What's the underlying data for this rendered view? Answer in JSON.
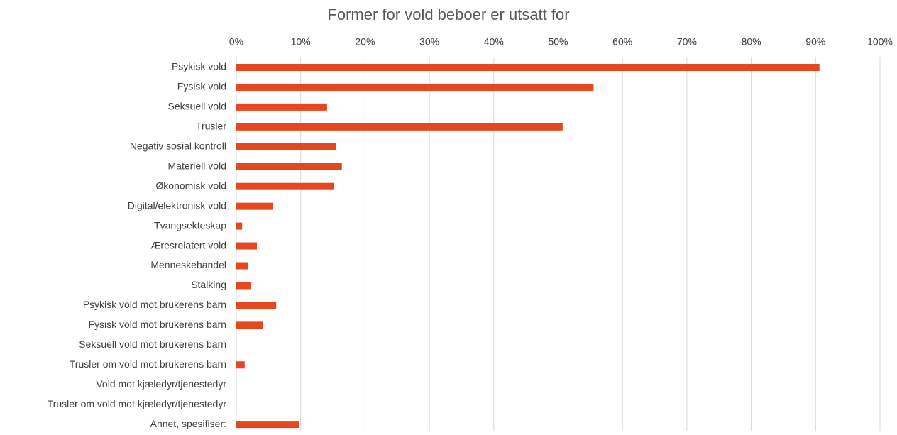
{
  "chart_data": {
    "type": "barh",
    "title": "Former for vold beboer er utsatt for",
    "categories": [
      "Psykisk vold",
      "Fysisk vold",
      "Seksuell vold",
      "Trusler",
      "Negativ sosial kontroll",
      "Materiell vold",
      "Økonomisk vold",
      "Digital/elektronisk vold",
      "Tvangsekteskap",
      "Æresrelatert vold",
      "Menneskehandel",
      "Stalking",
      "Psykisk vold mot brukerens barn",
      "Fysisk vold mot brukerens barn",
      "Seksuell vold mot brukerens barn",
      "Trusler om vold mot brukerens barn",
      "Vold mot kjæledyr/tjenestedyr",
      "Trusler om vold mot kjæledyr/tjenestedyr",
      "Annet, spesifiser:"
    ],
    "values": [
      90.6,
      55.5,
      14.1,
      50.7,
      15.5,
      16.4,
      15.2,
      5.7,
      0.9,
      3.2,
      1.8,
      2.2,
      6.2,
      4.1,
      0,
      1.3,
      0,
      0,
      9.7
    ],
    "color": "#e5481e",
    "xlim": [
      0,
      100
    ],
    "xticks": [
      {
        "value": 0,
        "label": "0%"
      },
      {
        "value": 10,
        "label": "10%"
      },
      {
        "value": 20,
        "label": "20%"
      },
      {
        "value": 30,
        "label": "30%"
      },
      {
        "value": 40,
        "label": "40%"
      },
      {
        "value": 50,
        "label": "50%"
      },
      {
        "value": 60,
        "label": "60%"
      },
      {
        "value": 70,
        "label": "70%"
      },
      {
        "value": 80,
        "label": "80%"
      },
      {
        "value": 90,
        "label": "90%"
      },
      {
        "value": 100,
        "label": "100%"
      }
    ],
    "grid": true
  }
}
